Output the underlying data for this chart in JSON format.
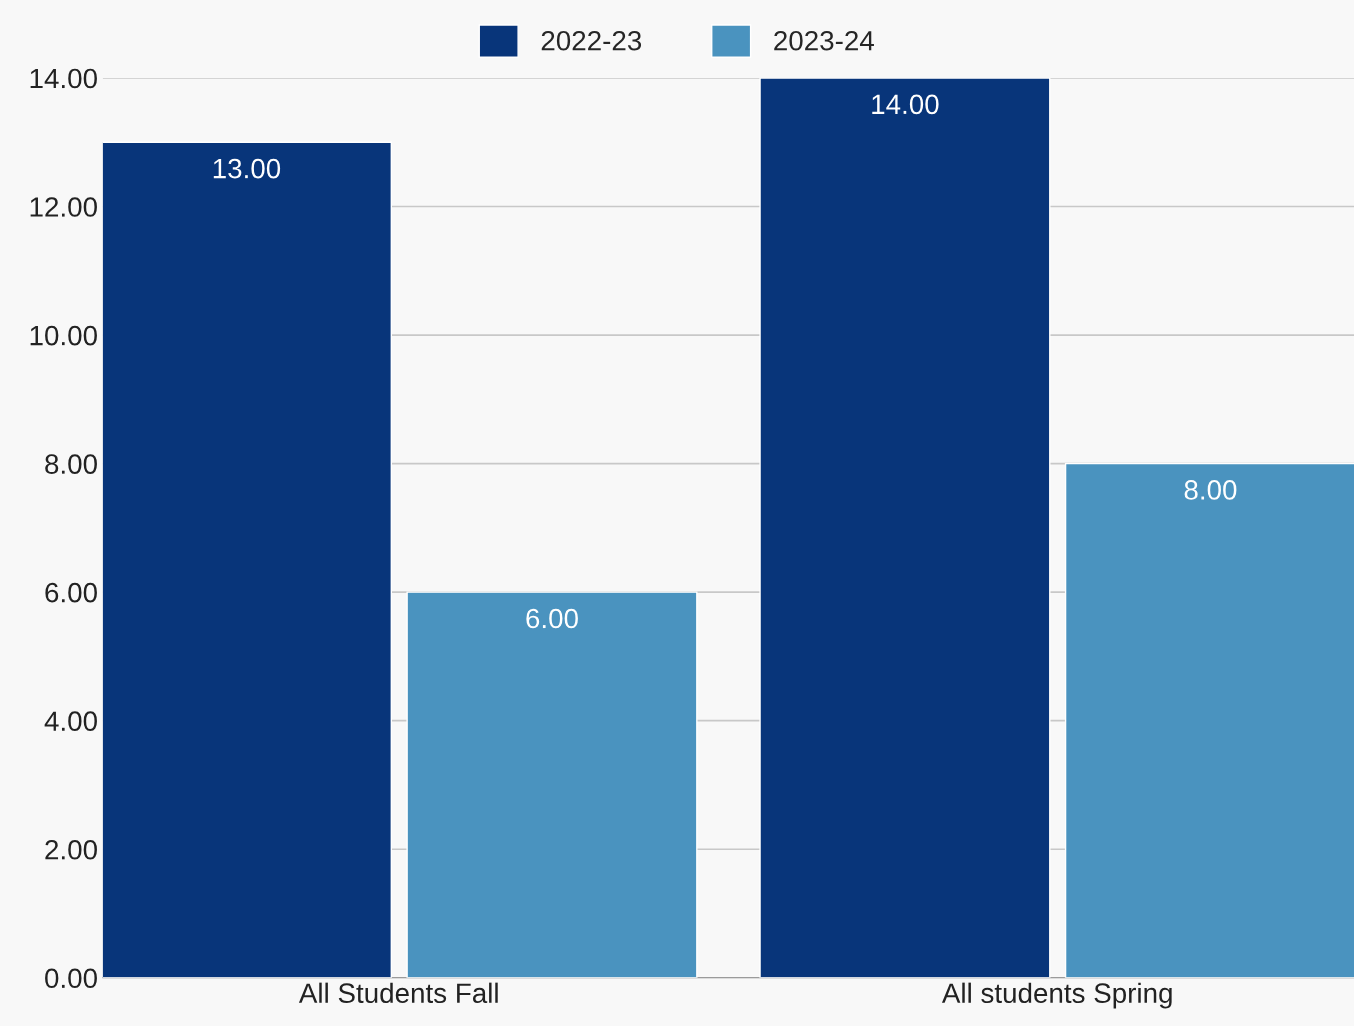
{
  "chart_data": {
    "type": "bar",
    "categories": [
      "All Students Fall",
      "All students Spring"
    ],
    "series": [
      {
        "name": "2022-23",
        "color": "#08357a",
        "values": [
          13,
          14
        ],
        "value_labels": [
          "13.00",
          "14.00"
        ]
      },
      {
        "name": "2023-24",
        "color": "#4a93bf",
        "values": [
          6,
          8
        ],
        "value_labels": [
          "6.00",
          "8.00"
        ]
      }
    ],
    "ylim": [
      0,
      14
    ],
    "yticks": [
      {
        "value": 0,
        "label": "0.00"
      },
      {
        "value": 2,
        "label": "2.00"
      },
      {
        "value": 4,
        "label": "4.00"
      },
      {
        "value": 6,
        "label": "6.00"
      },
      {
        "value": 8,
        "label": "8.00"
      },
      {
        "value": 10,
        "label": "10.00"
      },
      {
        "value": 12,
        "label": "12.00"
      },
      {
        "value": 14,
        "label": "14.00"
      }
    ],
    "grid": "y",
    "legend": "top"
  }
}
